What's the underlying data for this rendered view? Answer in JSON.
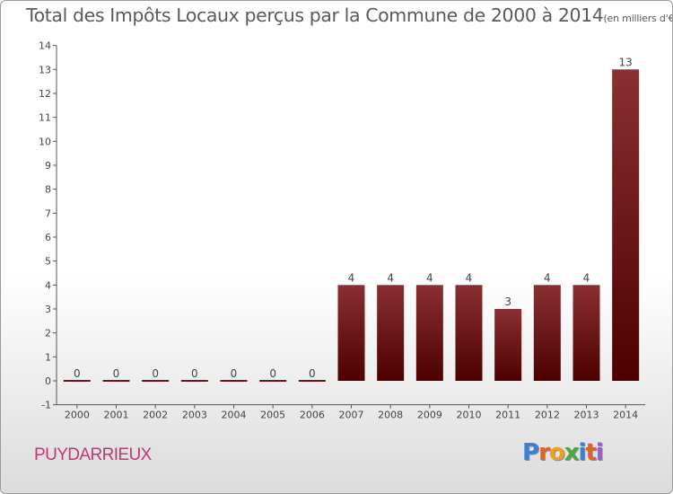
{
  "title": "Total des Impôts Locaux perçus par la Commune de 2000 à 2014",
  "unit_note": "(en milliers d'€)",
  "commune": "PUYDARRIEUX",
  "logo": {
    "text": "Proxiti",
    "colors": [
      "#3c7fd6",
      "#e0622a",
      "#f0a020",
      "#4aaa3a",
      "#3c7fd6",
      "#e0622a",
      "#9a5fc8"
    ]
  },
  "chart_data": {
    "type": "bar",
    "categories": [
      "2000",
      "2001",
      "2002",
      "2003",
      "2004",
      "2005",
      "2006",
      "2007",
      "2008",
      "2009",
      "2010",
      "2011",
      "2012",
      "2013",
      "2014"
    ],
    "values": [
      0,
      0,
      0,
      0,
      0,
      0,
      0,
      4,
      4,
      4,
      4,
      3,
      4,
      4,
      13
    ],
    "data_labels": [
      "0",
      "0",
      "0",
      "0",
      "0",
      "0",
      "0",
      "4",
      "4",
      "4",
      "4",
      "3",
      "4",
      "4",
      "13"
    ],
    "yticks": [
      "-1",
      "0",
      "1",
      "2",
      "3",
      "4",
      "5",
      "6",
      "7",
      "8",
      "9",
      "10",
      "11",
      "12",
      "13",
      "14"
    ],
    "ylim": [
      -1,
      14
    ],
    "bar_color": "#6e1515",
    "grid": false,
    "legend": "none"
  }
}
